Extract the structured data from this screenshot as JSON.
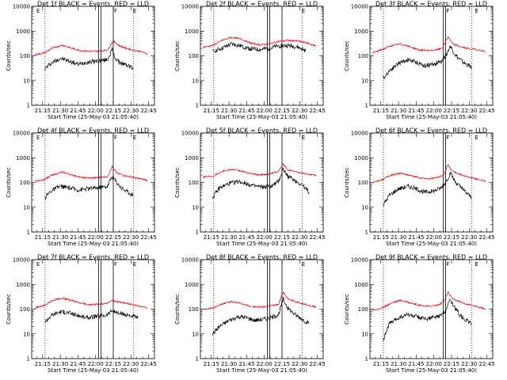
{
  "chart_data": {
    "type": "line",
    "y_scale": "log",
    "ylim": [
      1,
      10000
    ],
    "y_ticks": [
      "1",
      "10",
      "100",
      "1000",
      "10000"
    ],
    "ylabel": "Counts/sec",
    "x_ticks": [
      "21:15",
      "21:30",
      "21:45",
      "22:00",
      "22:15",
      "22:30",
      "22:45"
    ],
    "x_tick_minutes": [
      15,
      30,
      45,
      60,
      75,
      90,
      105
    ],
    "xlim_minutes": [
      5.7,
      110
    ],
    "xlabel": "Start Time (25-May-03 21:05:40)",
    "dotted_lines_minutes": [
      17,
      92
    ],
    "panels": [
      {
        "title": "Det 1f BLACK = Events, RED = LLD",
        "solid_lines_minutes": [
          62.5,
          64.5,
          75
        ],
        "flags": [
          {
            "label": "F",
            "minute": 75
          },
          {
            "label": "E",
            "minute": 9
          },
          {
            "label": "E",
            "minute": 91
          }
        ],
        "series": [
          {
            "name": "Events",
            "color": "#000000",
            "minutes": [
              17,
              22,
              30,
              38,
              45,
              52,
              60,
              66,
              70,
              74,
              76,
              80,
              84,
              88,
              92
            ],
            "values": [
              30,
              50,
              80,
              60,
              45,
              55,
              60,
              65,
              70,
              180,
              90,
              55,
              45,
              40,
              30
            ]
          },
          {
            "name": "LLD",
            "color": "#e00000",
            "minutes": [
              8,
              16,
              24,
              32,
              40,
              48,
              56,
              64,
              70,
              75,
              80,
              86,
              92,
              98,
              104
            ],
            "values": [
              110,
              130,
              210,
              270,
              200,
              160,
              150,
              160,
              170,
              400,
              260,
              200,
              170,
              150,
              120
            ]
          }
        ]
      },
      {
        "title": "Det 2f BLACK = Events, RED = LLD",
        "solid_lines_minutes": [
          62.5,
          64.5,
          75
        ],
        "flags": [
          {
            "label": "E",
            "minute": 91
          }
        ],
        "series": [
          {
            "name": "Events",
            "color": "#000000",
            "minutes": [
              16,
              24,
              32,
              40,
              48,
              56,
              64,
              72,
              80,
              88,
              95
            ],
            "values": [
              150,
              200,
              300,
              250,
              190,
              180,
              200,
              250,
              260,
              230,
              160
            ]
          },
          {
            "name": "LLD",
            "color": "#e00000",
            "minutes": [
              8,
              16,
              24,
              32,
              40,
              48,
              56,
              64,
              72,
              80,
              88,
              96,
              104
            ],
            "values": [
              220,
              260,
              420,
              560,
              480,
              330,
              280,
              300,
              380,
              420,
              400,
              330,
              250
            ]
          }
        ]
      },
      {
        "title": "Det 3f BLACK = Events, RED = LLD",
        "solid_lines_minutes": [
          68,
          70
        ],
        "flags": [
          {
            "label": "F",
            "minute": 70
          },
          {
            "label": "E",
            "minute": 94
          }
        ],
        "series": [
          {
            "name": "Events",
            "color": "#000000",
            "minutes": [
              17,
              22,
              30,
              38,
              45,
              52,
              60,
              66,
              70,
              74,
              78,
              82,
              86,
              92
            ],
            "values": [
              12,
              25,
              50,
              70,
              55,
              40,
              45,
              60,
              100,
              250,
              110,
              70,
              50,
              35
            ]
          },
          {
            "name": "LLD",
            "color": "#e00000",
            "minutes": [
              8,
              16,
              24,
              32,
              40,
              48,
              56,
              64,
              68,
              72,
              76,
              82,
              88,
              96,
              104
            ],
            "values": [
              130,
              180,
              260,
              300,
              230,
              170,
              160,
              180,
              230,
              600,
              300,
              240,
              200,
              180,
              150
            ]
          }
        ]
      },
      {
        "title": "Det 4f BLACK = Events, RED = LLD",
        "solid_lines_minutes": [
          62.5,
          64.5,
          75
        ],
        "flags": [
          {
            "label": "E",
            "minute": 9
          },
          {
            "label": "F",
            "minute": 75
          },
          {
            "label": "E",
            "minute": 91
          }
        ],
        "series": [
          {
            "name": "Events",
            "color": "#000000",
            "minutes": [
              17,
              22,
              30,
              38,
              45,
              52,
              60,
              66,
              70,
              74,
              78,
              82,
              86,
              92
            ],
            "values": [
              25,
              45,
              70,
              60,
              50,
              55,
              60,
              65,
              70,
              180,
              100,
              60,
              45,
              30
            ]
          },
          {
            "name": "LLD",
            "color": "#e00000",
            "minutes": [
              8,
              16,
              24,
              32,
              40,
              48,
              56,
              64,
              70,
              74,
              78,
              84,
              92,
              98,
              104
            ],
            "values": [
              110,
              130,
              210,
              260,
              200,
              160,
              150,
              160,
              170,
              430,
              250,
              190,
              160,
              140,
              120
            ]
          }
        ]
      },
      {
        "title": "Det 5f BLACK = Events, RED = LLD",
        "solid_lines_minutes": [
          62.5,
          64.5,
          75
        ],
        "flags": [
          {
            "label": "E",
            "minute": 91
          }
        ],
        "series": [
          {
            "name": "Events",
            "color": "#000000",
            "minutes": [
              16,
              22,
              30,
              38,
              45,
              52,
              60,
              66,
              72,
              76,
              80,
              86,
              92,
              98
            ],
            "values": [
              25,
              60,
              90,
              110,
              90,
              70,
              65,
              70,
              110,
              350,
              180,
              120,
              80,
              40
            ]
          },
          {
            "name": "LLD",
            "color": "#e00000",
            "minutes": [
              8,
              16,
              24,
              32,
              40,
              48,
              56,
              64,
              72,
              76,
              80,
              88,
              96,
              104
            ],
            "values": [
              170,
              180,
              280,
              340,
              290,
              230,
              200,
              220,
              280,
              550,
              320,
              260,
              220,
              190
            ]
          }
        ]
      },
      {
        "title": "Det 6f BLACK = Events, RED = LLD",
        "solid_lines_minutes": [
          68,
          70
        ],
        "flags": [
          {
            "label": "F",
            "minute": 70
          },
          {
            "label": "E",
            "minute": 94
          }
        ],
        "series": [
          {
            "name": "Events",
            "color": "#000000",
            "minutes": [
              17,
              22,
              30,
              38,
              45,
              52,
              60,
              66,
              70,
              74,
              78,
              82,
              86,
              92
            ],
            "values": [
              12,
              30,
              55,
              70,
              55,
              40,
              45,
              60,
              100,
              240,
              110,
              70,
              45,
              25
            ]
          },
          {
            "name": "LLD",
            "color": "#e00000",
            "minutes": [
              8,
              16,
              24,
              32,
              40,
              48,
              56,
              64,
              68,
              72,
              76,
              82,
              88,
              96,
              104
            ],
            "values": [
              100,
              130,
              200,
              240,
              190,
              150,
              140,
              160,
              200,
              520,
              280,
              220,
              170,
              140,
              110
            ]
          }
        ]
      },
      {
        "title": "Det 7f BLACK = Events, RED = LLD",
        "solid_lines_minutes": [
          62.5,
          64.5,
          75
        ],
        "flags": [
          {
            "label": "E",
            "minute": 9
          },
          {
            "label": "F",
            "minute": 75
          },
          {
            "label": "E",
            "minute": 91
          }
        ],
        "series": [
          {
            "name": "Events",
            "color": "#000000",
            "minutes": [
              17,
              22,
              30,
              38,
              45,
              52,
              60,
              66,
              70,
              74,
              78,
              84,
              90,
              96
            ],
            "values": [
              30,
              55,
              80,
              70,
              55,
              45,
              50,
              55,
              60,
              90,
              70,
              60,
              55,
              45
            ]
          },
          {
            "name": "LLD",
            "color": "#e00000",
            "minutes": [
              8,
              16,
              24,
              32,
              40,
              48,
              56,
              64,
              70,
              74,
              78,
              84,
              92,
              98,
              104
            ],
            "values": [
              110,
              140,
              230,
              280,
              220,
              170,
              150,
              160,
              170,
              230,
              200,
              180,
              150,
              130,
              110
            ]
          }
        ]
      },
      {
        "title": "Det 8f BLACK = Events, RED = LLD",
        "solid_lines_minutes": [
          62.5,
          64.5,
          75
        ],
        "flags": [
          {
            "label": "E",
            "minute": 91
          }
        ],
        "series": [
          {
            "name": "Events",
            "color": "#000000",
            "minutes": [
              16,
              22,
              30,
              38,
              45,
              52,
              60,
              66,
              72,
              76,
              80,
              86,
              92,
              98
            ],
            "values": [
              10,
              20,
              35,
              50,
              45,
              35,
              40,
              45,
              60,
              250,
              110,
              60,
              40,
              25
            ]
          },
          {
            "name": "LLD",
            "color": "#e00000",
            "minutes": [
              8,
              16,
              24,
              32,
              40,
              48,
              56,
              64,
              72,
              76,
              80,
              88,
              96,
              104
            ],
            "values": [
              100,
              110,
              160,
              200,
              170,
              130,
              120,
              130,
              160,
              500,
              260,
              190,
              150,
              120
            ]
          }
        ]
      },
      {
        "title": "Det 9f BLACK = Events, RED = LLD",
        "solid_lines_minutes": [
          68,
          70
        ],
        "flags": [
          {
            "label": "F",
            "minute": 70
          },
          {
            "label": "E",
            "minute": 94
          }
        ],
        "series": [
          {
            "name": "Events",
            "color": "#000000",
            "minutes": [
              17,
              22,
              30,
              38,
              45,
              52,
              60,
              66,
              70,
              74,
              78,
              82,
              86,
              92
            ],
            "values": [
              6,
              25,
              45,
              60,
              50,
              40,
              45,
              55,
              90,
              250,
              110,
              60,
              40,
              25
            ]
          },
          {
            "name": "LLD",
            "color": "#e00000",
            "minutes": [
              8,
              16,
              24,
              32,
              40,
              48,
              56,
              64,
              68,
              72,
              76,
              82,
              88,
              96,
              104
            ],
            "values": [
              90,
              110,
              180,
              230,
              180,
              140,
              130,
              150,
              190,
              480,
              260,
              200,
              160,
              130,
              100
            ]
          }
        ]
      }
    ]
  }
}
